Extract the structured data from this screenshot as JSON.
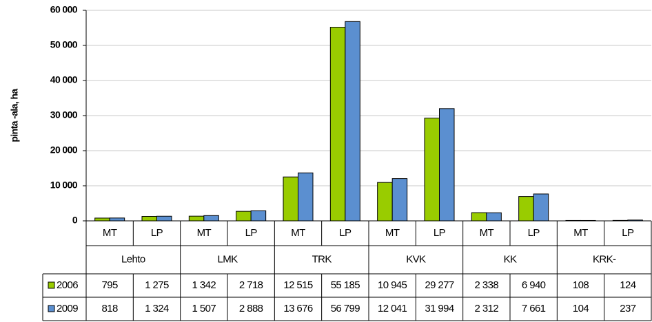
{
  "chart_data": {
    "type": "bar",
    "y_label": "pinta -ala, ha",
    "categories": [
      "MT",
      "LP",
      "MT",
      "LP",
      "MT",
      "LP",
      "MT",
      "LP",
      "MT",
      "LP",
      "MT",
      "LP"
    ],
    "groups": [
      "Lehto",
      "LMK",
      "TRK",
      "KVK",
      "KK",
      "KRK-"
    ],
    "series": [
      {
        "name": "2006",
        "color": "#99cc00",
        "values": [
          795,
          1275,
          1342,
          2718,
          12515,
          55185,
          10945,
          29277,
          2338,
          6940,
          108,
          124
        ],
        "value_labels": [
          "795",
          "1 275",
          "1 342",
          "2 718",
          "12 515",
          "55 185",
          "10 945",
          "29 277",
          "2 338",
          "6 940",
          "108",
          "124"
        ]
      },
      {
        "name": "2009",
        "color": "#5b8fd0",
        "values": [
          818,
          1324,
          1507,
          2888,
          13676,
          56799,
          12041,
          31994,
          2312,
          7661,
          104,
          237
        ],
        "value_labels": [
          "818",
          "1 324",
          "1 507",
          "2 888",
          "13 676",
          "56 799",
          "12 041",
          "31 994",
          "2 312",
          "7 661",
          "104",
          "237"
        ]
      }
    ],
    "ylim": [
      0,
      60000
    ],
    "yticks": [
      0,
      {
        "value": 10000,
        "label": "10 000"
      },
      {
        "value": 20000,
        "label": "20 000"
      },
      {
        "value": 30000,
        "label": "30 000"
      },
      {
        "value": 40000,
        "label": "40 000"
      },
      {
        "value": 50000,
        "label": "50 000"
      },
      {
        "value": 60000,
        "label": "60 000"
      }
    ],
    "grid": true
  }
}
